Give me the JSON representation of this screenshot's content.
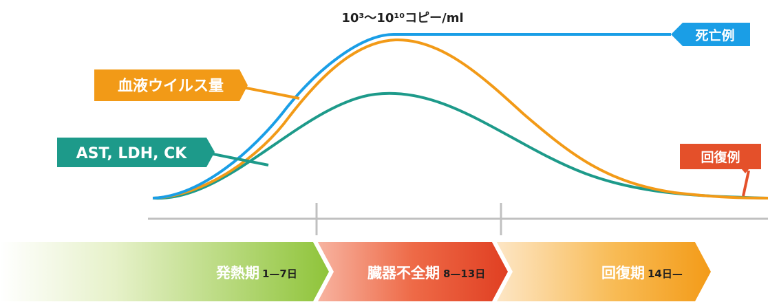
{
  "diagram": {
    "peak_label": "10³〜10¹⁰コピー/ml",
    "labels": {
      "death": "死亡例",
      "viral_load": "血液ウイルス量",
      "enzymes": "AST, LDH, CK",
      "recovery": "回復例"
    },
    "phases": [
      {
        "name": "発熱期",
        "days": "1—7日"
      },
      {
        "name": "臓器不全期",
        "days": "8—13日"
      },
      {
        "name": "回復期",
        "days": "14日—"
      }
    ],
    "colors": {
      "death": "#1a9ee6",
      "viral_load": "#f29a17",
      "enzymes": "#1d9a8a",
      "recovery": "#e4502a",
      "baseline": "#c0c0c0",
      "phase_fever": "#9ccb35",
      "phase_organ": "#e9472a",
      "phase_recovery": "#f5a623"
    }
  }
}
